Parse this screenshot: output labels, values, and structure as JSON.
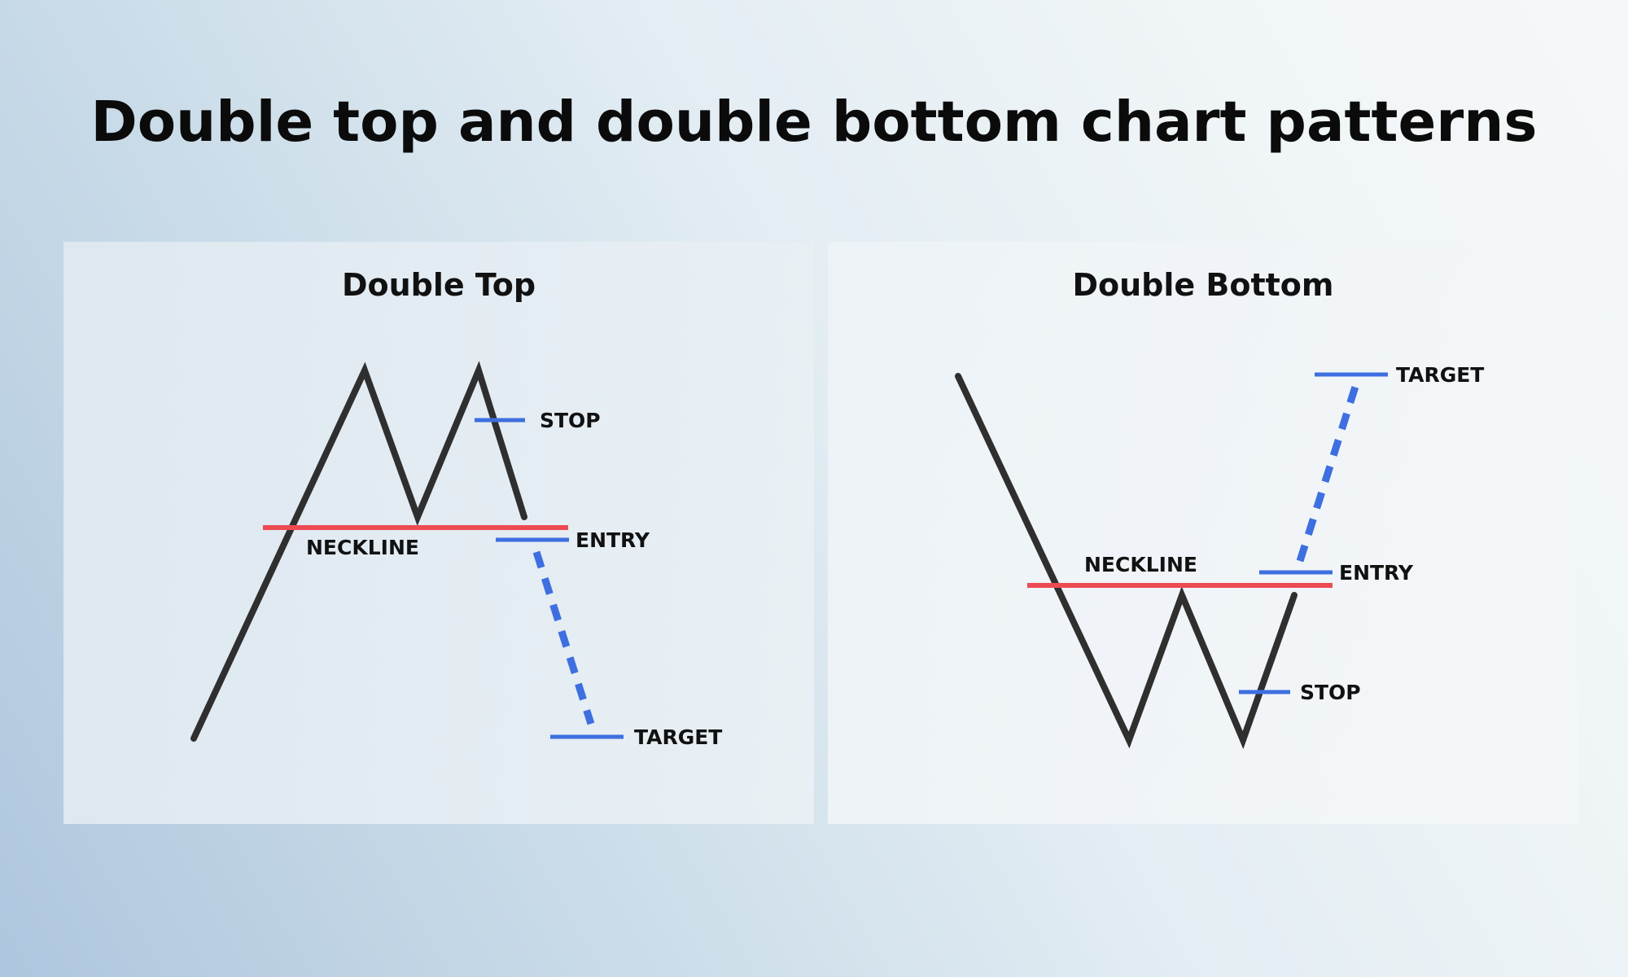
{
  "title": "Double top and double bottom chart patterns",
  "colors": {
    "price_line": "#2f2f2f",
    "neckline": "#ee4a52",
    "levels": "#3e6fe0",
    "text": "#111111"
  },
  "panels": [
    {
      "title": "Double Top",
      "labels": {
        "stop": "STOP",
        "neckline": "NECKLINE",
        "entry": "ENTRY",
        "target": "TARGET"
      }
    },
    {
      "title": "Double Bottom",
      "labels": {
        "target": "TARGET",
        "neckline": "NECKLINE",
        "entry": "ENTRY",
        "stop": "STOP"
      }
    }
  ]
}
